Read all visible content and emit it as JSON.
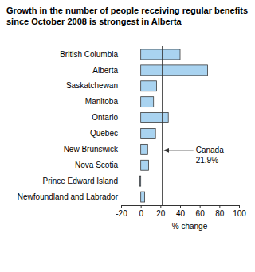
{
  "chart_data": {
    "type": "bar",
    "orientation": "horizontal",
    "title": "Growth in the number of people receiving regular benefits since October 2008 is strongest in Alberta",
    "categories": [
      "British Columbia",
      "Alberta",
      "Saskatchewan",
      "Manitoba",
      "Ontario",
      "Quebec",
      "New Brunswick",
      "Nova Scotia",
      "Prince Edward Island",
      "Newfoundland and Labrador"
    ],
    "values": [
      40,
      68,
      16,
      13,
      28,
      15,
      7,
      8,
      -1,
      4
    ],
    "color": "#a9d3f0",
    "xlabel": "% change",
    "xlim": [
      -20,
      100
    ],
    "xticks": [
      -20,
      0,
      20,
      40,
      60,
      80,
      100
    ],
    "reference_line": {
      "name": "Canada",
      "value": 21.9,
      "label": "21.9%"
    }
  }
}
